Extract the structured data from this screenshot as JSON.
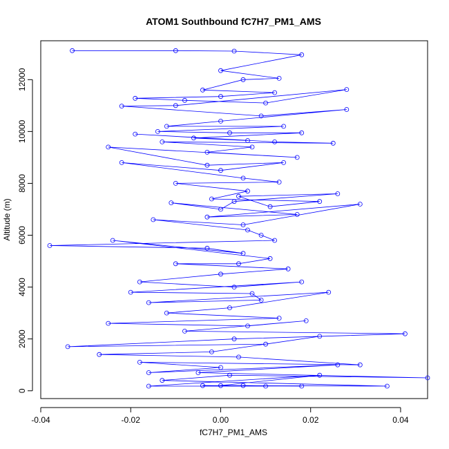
{
  "chart_data": {
    "type": "line",
    "title": "ATOM1 Southbound fC7H7_PM1_AMS",
    "xlabel": "fC7H7_PM1_AMS",
    "ylabel": "Altitude (m)",
    "xlim": [
      -0.04,
      0.046
    ],
    "ylim": [
      -300,
      13500
    ],
    "x_ticks": [
      -0.04,
      -0.02,
      0.0,
      0.02,
      0.04
    ],
    "x_tick_labels": [
      "-0.04",
      "-0.02",
      "0.00",
      "0.02",
      "0.04"
    ],
    "y_ticks": [
      0,
      2000,
      4000,
      6000,
      8000,
      10000,
      12000
    ],
    "y_tick_labels": [
      "0",
      "2000",
      "4000",
      "6000",
      "8000",
      "10000",
      "12000"
    ],
    "grid": false,
    "color": "#0000ff",
    "marker": "open-circle",
    "series": [
      {
        "x": [
          -0.033,
          -0.01,
          0.003,
          0.018,
          0.0,
          0.013,
          0.005,
          -0.004,
          0.012,
          0.0,
          -0.019,
          -0.008,
          0.01,
          0.028,
          -0.01,
          -0.022,
          0.009,
          0.028,
          0.0,
          -0.012,
          0.014,
          -0.014,
          0.002,
          0.018,
          -0.006,
          0.006,
          -0.019,
          0.012,
          0.025,
          -0.013,
          0.007,
          -0.003,
          0.017,
          -0.025,
          -0.003,
          0.014,
          0.0,
          -0.022,
          0.005,
          0.013,
          -0.01,
          0.006,
          -0.002,
          0.022,
          0.011,
          0.004,
          0.026,
          0.003,
          0.0,
          -0.011,
          0.017,
          -0.003,
          0.031,
          0.005,
          -0.015,
          0.006,
          0.009,
          0.012,
          -0.038,
          -0.003,
          0.005,
          -0.024,
          0.011,
          0.004,
          -0.01,
          0.015,
          0.0,
          -0.018,
          0.003,
          0.018,
          -0.02,
          0.007,
          0.009,
          -0.016,
          0.024,
          0.002,
          -0.012,
          0.013,
          -0.025,
          0.006,
          0.019,
          -0.008,
          0.041,
          0.003,
          -0.034,
          0.01,
          0.022,
          -0.002,
          -0.027,
          0.004,
          0.031,
          -0.018,
          0.0,
          -0.016,
          0.026,
          -0.005,
          0.046,
          0.002,
          -0.013,
          0.037,
          0.0,
          0.022,
          -0.016,
          0.01,
          -0.004,
          0.018,
          0.005
        ],
        "y": [
          13120,
          13120,
          13100,
          12960,
          12350,
          12050,
          12000,
          11600,
          11500,
          11350,
          11280,
          11200,
          11100,
          11620,
          11000,
          10980,
          10600,
          10850,
          10400,
          10200,
          10200,
          10000,
          9950,
          9950,
          9750,
          9650,
          9900,
          9600,
          9550,
          9600,
          9400,
          9200,
          9000,
          9400,
          8700,
          8800,
          8500,
          8800,
          8200,
          8050,
          8000,
          7700,
          7400,
          7300,
          7100,
          7500,
          7600,
          7300,
          7000,
          7250,
          6800,
          6700,
          7200,
          6400,
          6600,
          6200,
          6000,
          5800,
          5600,
          5500,
          5300,
          5800,
          5100,
          4900,
          4900,
          4700,
          4500,
          4200,
          4000,
          4200,
          3800,
          3750,
          3500,
          3400,
          3800,
          3200,
          3000,
          2800,
          2600,
          2500,
          2700,
          2300,
          2200,
          2000,
          1700,
          1800,
          2100,
          1500,
          1400,
          1300,
          1000,
          1100,
          900,
          700,
          1000,
          700,
          500,
          600,
          400,
          180,
          200,
          600,
          180,
          180,
          200,
          180,
          200
        ]
      }
    ]
  }
}
